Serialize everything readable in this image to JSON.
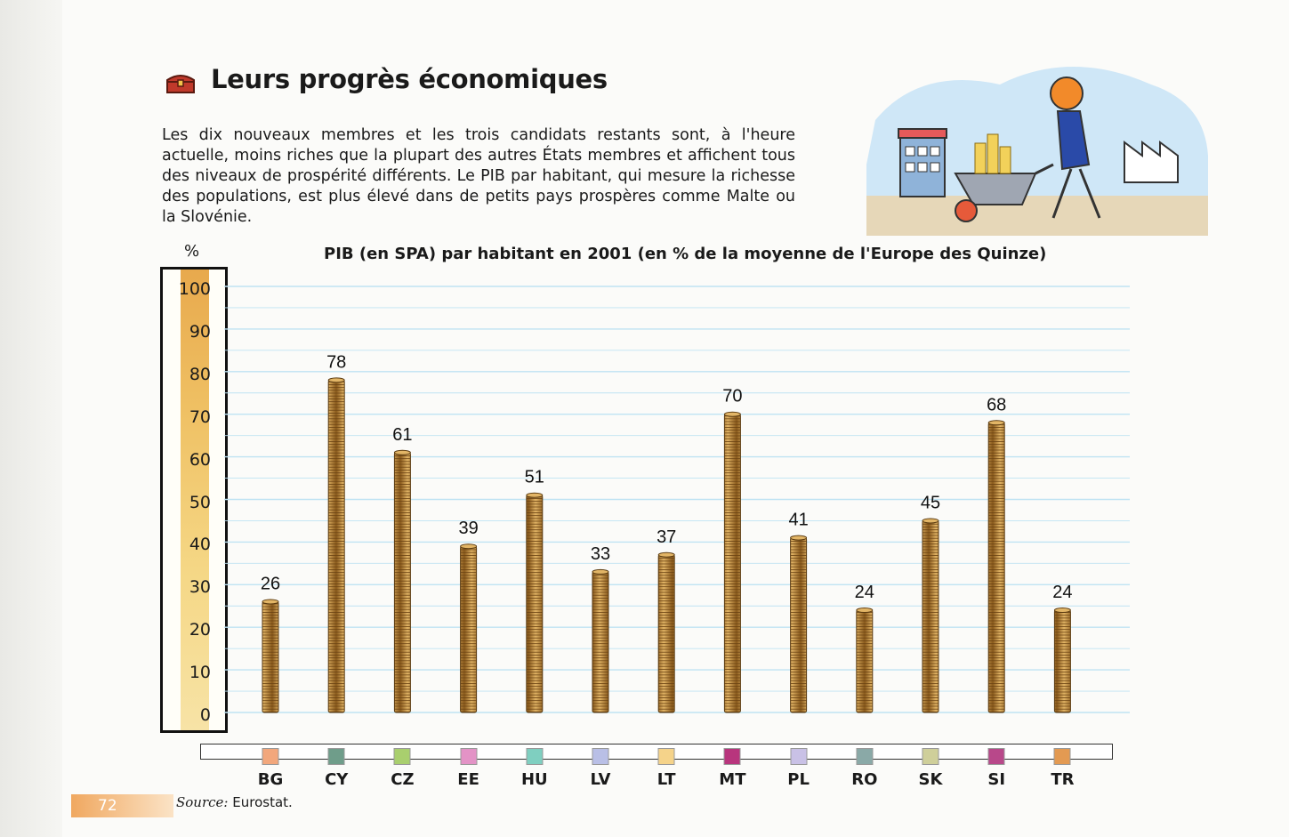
{
  "page": {
    "title": "Leurs progrès économiques",
    "intro": "Les dix nouveaux membres et les trois candidats restants sont, à l'heure actuelle, moins riches que la plupart des autres États membres et affichent tous des niveaux de prospérité différents. Le PIB par habitant, qui mesure la richesse des populations, est plus élevé dans de petits pays prospères comme Malte ou la Slovénie.",
    "page_number": "72",
    "source_label": "Source:",
    "source_value": " Eurostat."
  },
  "icons": {
    "title_icon": "treasure-chest-icon",
    "illustration": "wheelbarrow-coins-illustration"
  },
  "colors": {
    "coin_dark": "#8a5a1c",
    "coin_light": "#e2b566",
    "gridline": "#bfe3f3",
    "accent_orange": "#f0a860"
  },
  "chart_data": {
    "type": "bar",
    "title": "PIB (en SPA) par habitant en 2001 (en % de la moyenne de l'Europe des Quinze)",
    "ylabel": "%",
    "ylim": [
      0,
      100
    ],
    "yticks": [
      0,
      10,
      20,
      30,
      40,
      50,
      60,
      70,
      80,
      90,
      100
    ],
    "grid": true,
    "categories": [
      "BG",
      "CY",
      "CZ",
      "EE",
      "HU",
      "LV",
      "LT",
      "MT",
      "PL",
      "RO",
      "SK",
      "SI",
      "TR"
    ],
    "values": [
      26,
      78,
      61,
      39,
      51,
      33,
      37,
      70,
      41,
      24,
      45,
      68,
      24
    ],
    "legend_colors": [
      "#f2a77c",
      "#6f9d8a",
      "#a9cf6e",
      "#e393c6",
      "#7fcfc0",
      "#b9bfe6",
      "#f5d38a",
      "#b8357d",
      "#c9c1e6",
      "#8aa9a7",
      "#cfcf9a",
      "#b8488a",
      "#e39a52"
    ]
  }
}
